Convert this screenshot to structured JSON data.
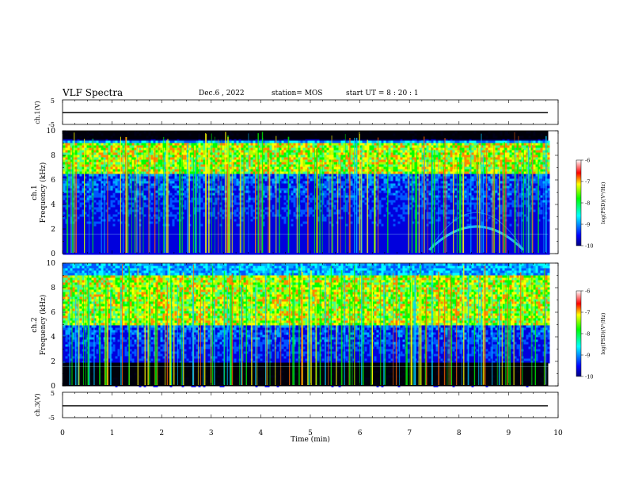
{
  "header": {
    "title": "VLF Spectra",
    "date": "Dec.6 , 2022",
    "station": "station= MOS",
    "start": "start UT = 8 : 20 : 1"
  },
  "chart_data": [
    {
      "type": "line",
      "ylabel": "ch.1(V)",
      "ylim": [
        -5,
        5
      ],
      "yticks": [
        5,
        -5
      ],
      "series": [
        {
          "x": [
            0,
            9.8
          ],
          "y": [
            0,
            0
          ]
        }
      ]
    },
    {
      "type": "heatmap",
      "ylabel_top": "ch.1",
      "ylabel": "Frequency (kHz)",
      "ylim": [
        0,
        10
      ],
      "yticks": [
        0,
        2,
        4,
        6,
        8,
        10
      ],
      "colorbar": {
        "label": "log(PSD)(V²/Hz)",
        "ticks": [
          -6,
          -7,
          -8,
          -9,
          -10
        ],
        "range": [
          -10,
          -6
        ]
      },
      "features": {
        "noise_band_khz": [
          6.5,
          9.0
        ],
        "dark_band_khz": [
          9.3,
          10.0
        ],
        "hiss_arc": {
          "time_min": [
            7.4,
            9.3
          ],
          "peak_khz": 2.2
        }
      }
    },
    {
      "type": "heatmap",
      "ylabel_top": "ch.2",
      "ylabel": "Frequency (kHz)",
      "ylim": [
        0,
        10
      ],
      "yticks": [
        0,
        2,
        4,
        6,
        8,
        10
      ],
      "colorbar": {
        "label": "log(PSD)(V²/Hz)",
        "ticks": [
          -6,
          -7,
          -8,
          -9,
          -10
        ],
        "range": [
          -10,
          -6
        ]
      },
      "features": {
        "noise_band_khz": [
          5.0,
          9.0
        ],
        "dark_band_khz": [
          0.0,
          1.9
        ]
      }
    },
    {
      "type": "line",
      "ylabel": "ch.3(V)",
      "ylim": [
        -5,
        5
      ],
      "yticks": [
        5,
        -5
      ],
      "series": [
        {
          "x": [
            0,
            9.8
          ],
          "y": [
            0,
            0
          ]
        }
      ]
    }
  ],
  "xaxis": {
    "label": "Time (min)",
    "ticks": [
      0,
      1,
      2,
      3,
      4,
      5,
      6,
      7,
      8,
      9,
      10
    ],
    "xlim": [
      0,
      10
    ],
    "data_end_min": 9.8
  }
}
